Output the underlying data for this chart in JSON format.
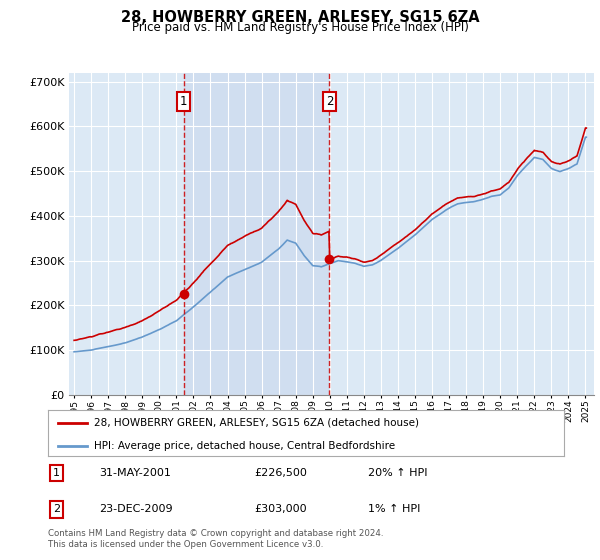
{
  "title": "28, HOWBERRY GREEN, ARLESEY, SG15 6ZA",
  "subtitle": "Price paid vs. HM Land Registry's House Price Index (HPI)",
  "legend_line1": "28, HOWBERRY GREEN, ARLESEY, SG15 6ZA (detached house)",
  "legend_line2": "HPI: Average price, detached house, Central Bedfordshire",
  "footnote1": "Contains HM Land Registry data © Crown copyright and database right 2024.",
  "footnote2": "This data is licensed under the Open Government Licence v3.0.",
  "sale1_date": "31-MAY-2001",
  "sale1_price": "£226,500",
  "sale1_hpi": "20% ↑ HPI",
  "sale2_date": "23-DEC-2009",
  "sale2_price": "£303,000",
  "sale2_hpi": "1% ↑ HPI",
  "sale1_year": 2001.42,
  "sale2_year": 2009.98,
  "sale1_value": 226500,
  "sale2_value": 303000,
  "red_color": "#cc0000",
  "blue_color": "#6699cc",
  "bg_color": "#dce9f5",
  "fill_color": "#c5d9ee",
  "grid_color": "#ffffff",
  "ylim": [
    0,
    720000
  ],
  "xlim_start": 1994.7,
  "xlim_end": 2025.5
}
